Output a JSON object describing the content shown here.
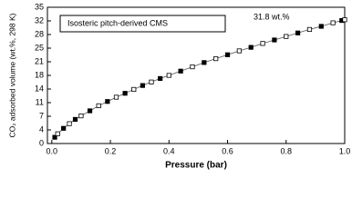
{
  "chart_data": {
    "type": "scatter",
    "legend_text": "Isosteric pitch-derived CMS",
    "annotation": "31.8 wt.%",
    "x_label": "Pressure (bar)",
    "y_label": "CO₂ adsorbed volume (wt.%, 298 K)",
    "x": [
      0.01,
      0.02,
      0.04,
      0.06,
      0.08,
      0.1,
      0.13,
      0.16,
      0.19,
      0.22,
      0.25,
      0.28,
      0.31,
      0.34,
      0.37,
      0.4,
      0.44,
      0.48,
      0.52,
      0.56,
      0.6,
      0.64,
      0.68,
      0.72,
      0.76,
      0.8,
      0.84,
      0.88,
      0.92,
      0.96,
      0.99,
      1.0
    ],
    "values": [
      1.6,
      2.5,
      3.9,
      5.1,
      6.2,
      7.1,
      8.4,
      9.7,
      10.8,
      11.9,
      12.9,
      13.9,
      14.9,
      15.8,
      16.7,
      17.5,
      18.6,
      19.7,
      20.8,
      21.8,
      22.8,
      23.8,
      24.7,
      25.7,
      26.6,
      27.5,
      28.4,
      29.3,
      30.1,
      31.0,
      31.6,
      31.8
    ],
    "color": "#000000",
    "xlim": [
      -0.015,
      1.0
    ],
    "ylim": [
      0,
      35
    ],
    "xticks": [
      {
        "value": 0,
        "label": "0.0"
      },
      {
        "value": 0.2,
        "label": "0.2"
      },
      {
        "value": 0.4,
        "label": "0.4"
      },
      {
        "value": 0.6,
        "label": "0.6"
      },
      {
        "value": 0.8,
        "label": "0.8"
      },
      {
        "value": 1,
        "label": "1.0"
      }
    ],
    "yticks": [
      0,
      {
        "value": 3.5,
        "label": "4"
      },
      7,
      {
        "value": 10.5,
        "label": "11"
      },
      14,
      {
        "value": 17.5,
        "label": "18"
      },
      21,
      {
        "value": 24.5,
        "label": "25"
      },
      28,
      {
        "value": 31.5,
        "label": "32"
      },
      35
    ]
  }
}
